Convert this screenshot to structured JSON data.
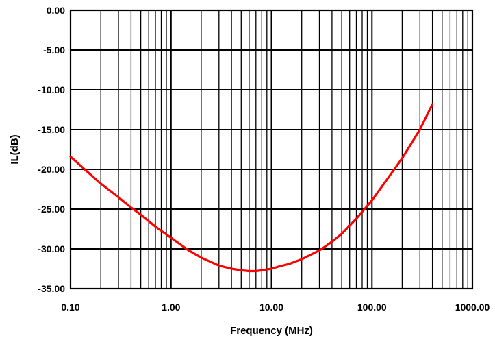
{
  "chart_data": {
    "type": "line",
    "title": "",
    "xlabel": "Frequency (MHz)",
    "ylabel": "IL(dB)",
    "x_scale": "log",
    "xlim": [
      0.1,
      1000
    ],
    "ylim": [
      -35,
      0
    ],
    "x_ticks": [
      0.1,
      1,
      10,
      100,
      1000
    ],
    "x_tick_labels": [
      "0.10",
      "1.00",
      "10.00",
      "100.00",
      "1000.00"
    ],
    "y_ticks": [
      0,
      -5,
      -10,
      -15,
      -20,
      -25,
      -30,
      -35
    ],
    "y_tick_labels": [
      "0.00",
      "-5.00",
      "-10.00",
      "-15.00",
      "-20.00",
      "-25.00",
      "-30.00",
      "-35.00"
    ],
    "grid": true,
    "legend": "none",
    "series": [
      {
        "color": "#ff0000",
        "x": [
          0.1,
          0.12,
          0.15,
          0.2,
          0.3,
          0.4,
          0.5,
          0.7,
          1,
          1.5,
          2,
          3,
          4,
          5,
          6,
          7,
          8,
          10,
          12,
          15,
          20,
          30,
          40,
          50,
          70,
          100,
          150,
          200,
          300,
          400
        ],
        "y": [
          -18.4,
          -19.3,
          -20.4,
          -21.8,
          -23.5,
          -24.8,
          -25.7,
          -27.2,
          -28.6,
          -30.2,
          -31.1,
          -32.1,
          -32.5,
          -32.7,
          -32.8,
          -32.8,
          -32.7,
          -32.5,
          -32.2,
          -31.9,
          -31.3,
          -30.2,
          -29.1,
          -28.1,
          -26.2,
          -23.9,
          -20.8,
          -18.6,
          -15.0,
          -11.8
        ]
      }
    ]
  }
}
